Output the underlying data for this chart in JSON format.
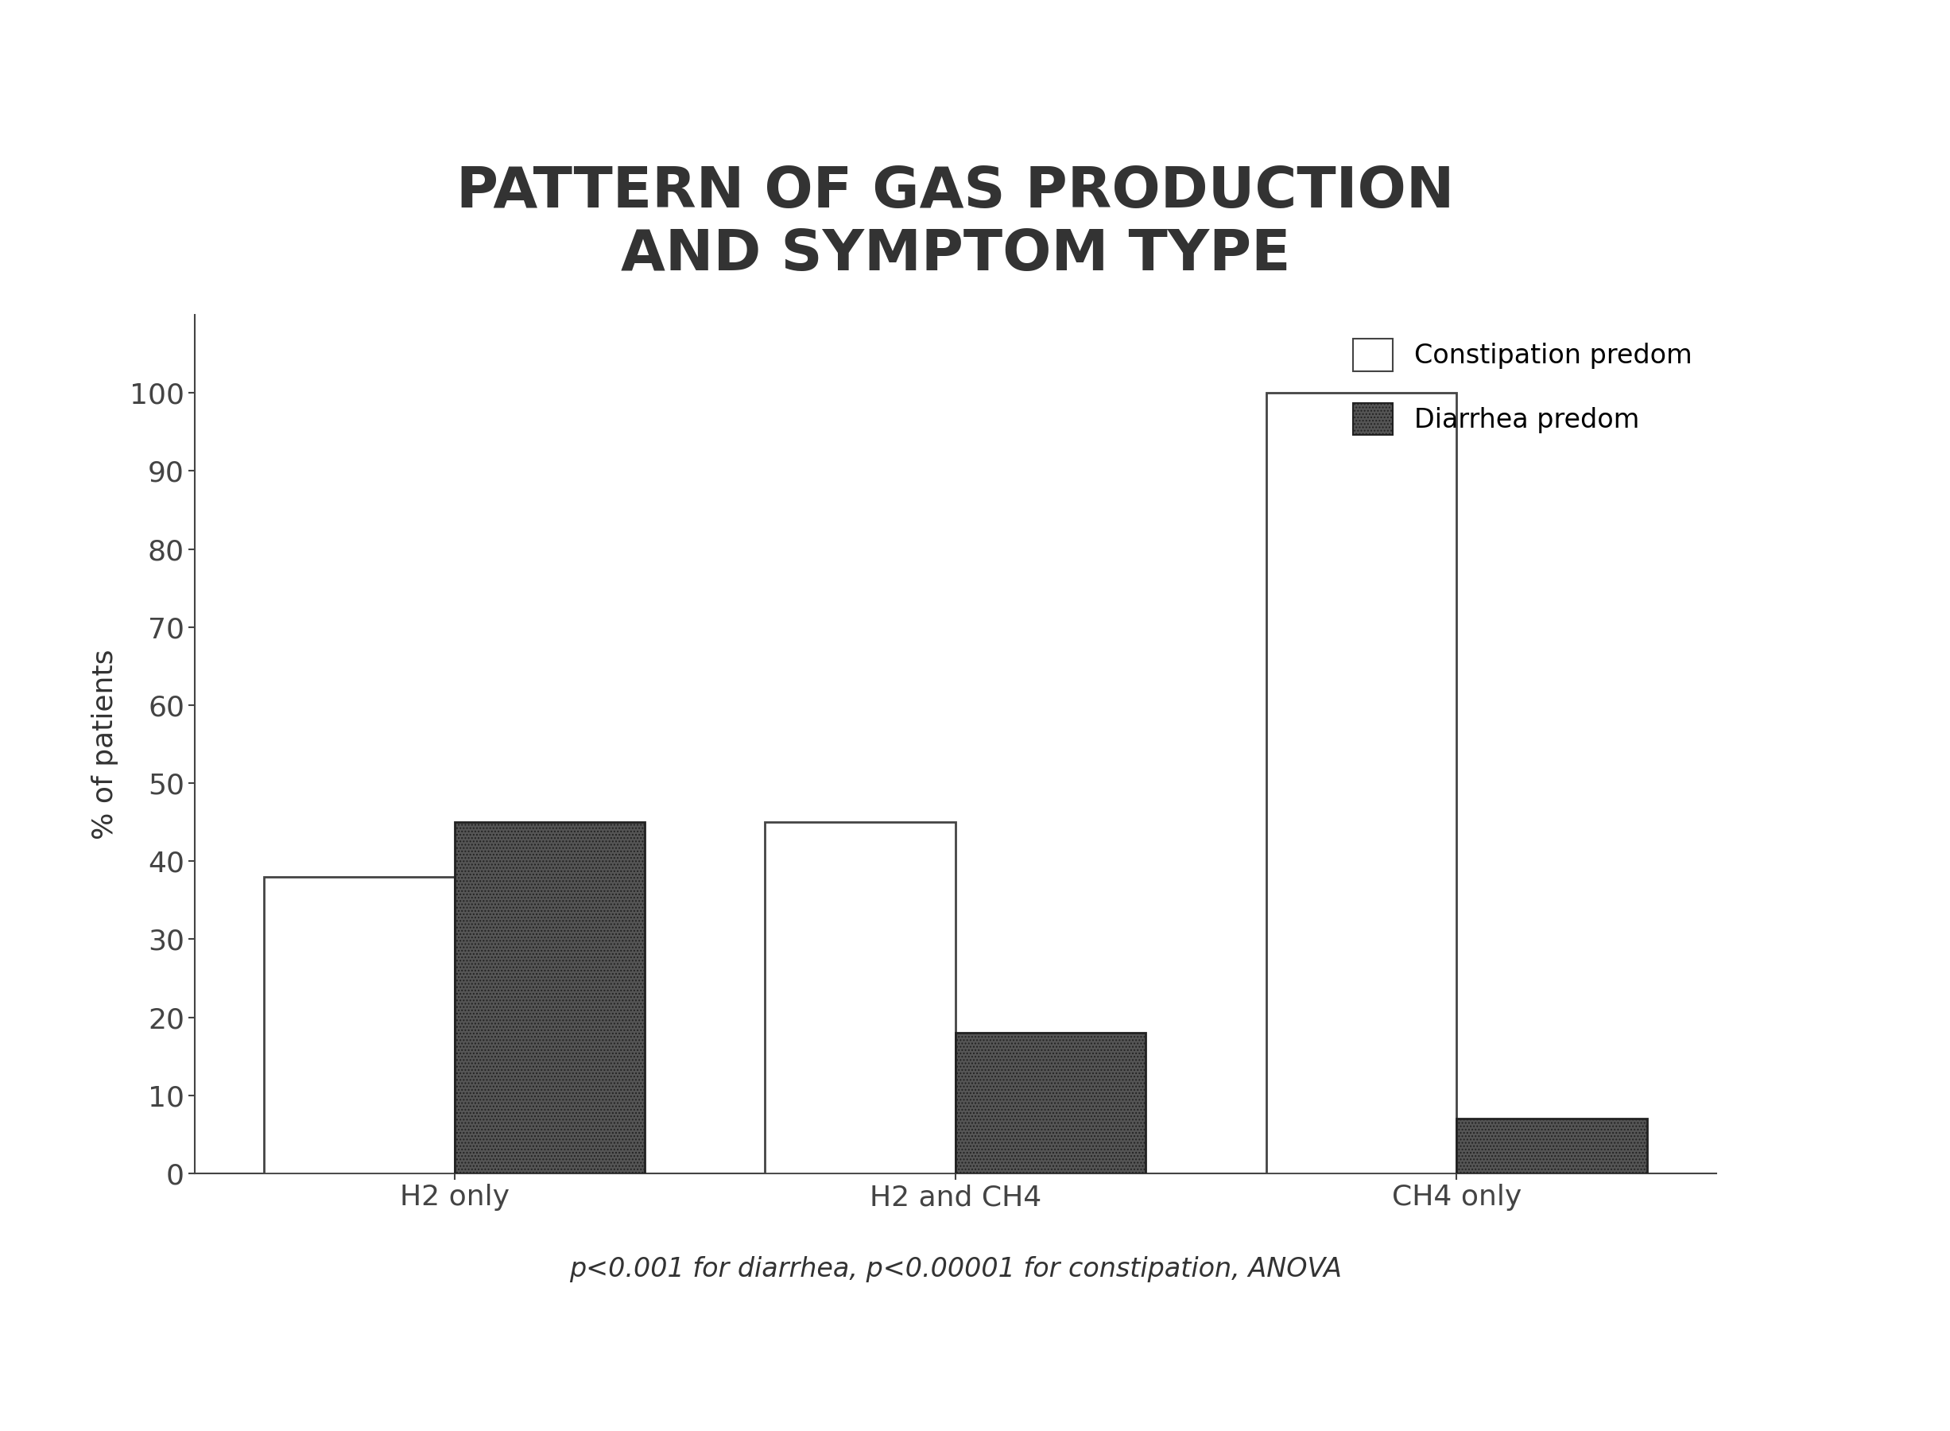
{
  "title": "PATTERN OF GAS PRODUCTION\nAND SYMPTOM TYPE",
  "categories": [
    "H2 only",
    "H2 and CH4",
    "CH4 only"
  ],
  "constipation_values": [
    38,
    45,
    100
  ],
  "diarrhea_values": [
    45,
    18,
    7
  ],
  "ylabel": "% of patients",
  "ylim": [
    0,
    110
  ],
  "yticks": [
    0,
    10,
    20,
    30,
    40,
    50,
    60,
    70,
    80,
    90,
    100
  ],
  "legend_labels": [
    "Constipation predom",
    "Diarrhea predom"
  ],
  "constipation_color": "#ffffff",
  "diarrhea_color": "#555555",
  "constipation_edgecolor": "#444444",
  "diarrhea_edgecolor": "#222222",
  "bar_width": 0.38,
  "footnote": "p<0.001 for diarrhea, p<0.00001 for constipation, ANOVA",
  "title_fontsize": 52,
  "axis_fontsize": 26,
  "tick_fontsize": 26,
  "legend_fontsize": 24,
  "footnote_fontsize": 24,
  "background_color": "#ffffff"
}
